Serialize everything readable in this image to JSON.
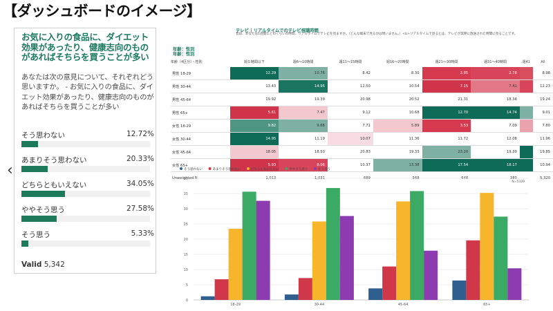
{
  "page_title": "【ダッシュボードのイメージ】",
  "survey": {
    "question": "お気に入りの食品に、ダイエット効果があったり、健康志向のものがあればそちらを買うことが多い",
    "prompt": "あなたは次の意見について、それぞれどう思いますか。 - お気に入りの食品に、ダイエット効果があったり、健康志向のものがあればそちらを買うことが多い",
    "options": [
      {
        "label": "そう思わない",
        "pct": "12.72%",
        "value": 12.72
      },
      {
        "label": "あまりそう思わない",
        "pct": "20.33%",
        "value": 20.33
      },
      {
        "label": "どちらともいえない",
        "pct": "34.05%",
        "value": 34.05
      },
      {
        "label": "ややそう思う",
        "pct": "27.58%",
        "value": 27.58
      },
      {
        "label": "そう思う",
        "pct": "5.33%",
        "value": 5.33
      }
    ],
    "valid_label": "Valid",
    "valid_value": "5,342",
    "prev_icon": "chevron-left-icon",
    "bar_color": "#1d7a5a"
  },
  "tv_table": {
    "title": "テレビ | リアルタイムでのテレビ視聴時間",
    "subtitle": "普段、あなたは1週間にどのくらいの時間、リアルタイムでテレビを見ますか。（どんな端末で見るかは問いません。）<b>リアルタイムで見るとは、テレビが実際に放送された時間に見ることです。",
    "legend_lines": [
      "年齢：性別",
      "年齢：性別"
    ],
    "header_row_label": "年齢（4区分）・性別",
    "columns": [
      "週５時間以下",
      "週6〜10時間",
      "週11〜15時間",
      "週16〜20時間",
      "週21〜30時間",
      "週31〜40時間",
      "週41",
      "All"
    ],
    "rows": [
      {
        "label": "男性 18-29",
        "values": [
          "12.29",
          "10.76",
          "8.42",
          "8.30",
          "2.85",
          "2.78",
          "",
          "8.98"
        ],
        "colors": [
          "#0e6b57",
          "#7fb0a4",
          "",
          "",
          "#d63a4f",
          "#d84459",
          "#d8505f",
          ""
        ]
      },
      {
        "label": "男性 30-44",
        "values": [
          "13.43",
          "14.95",
          "12.50",
          "10.54",
          "7.15",
          "7.41",
          "",
          "12.23"
        ],
        "colors": [
          "",
          "#1a7560",
          "",
          "",
          "#d0344a",
          "#e27886",
          "#d84459",
          ""
        ]
      },
      {
        "label": "男性 45-64",
        "values": [
          "19.92",
          "19.39",
          "20.98",
          "20.52",
          "21.31",
          "18.34",
          "",
          "19.24"
        ],
        "colors": [
          "",
          "",
          "",
          "",
          "",
          "",
          "",
          ""
        ]
      },
      {
        "label": "男性 65+",
        "values": [
          "5.61",
          "7.47",
          "9.12",
          "10.68",
          "12.70",
          "14.74",
          "",
          "9.01"
        ],
        "colors": [
          "#d0344a",
          "#f3c9cf",
          "",
          "",
          "#0e6b57",
          "#0e6b57",
          "#7fb0a4",
          ""
        ]
      },
      {
        "label": "女性 18-29",
        "values": [
          "9.82",
          "9.68",
          "7.71",
          "5.89",
          "3.53",
          "7.09",
          "",
          "7.80"
        ],
        "colors": [
          "#4f9584",
          "#7fb0a4",
          "",
          "#f3c9cf",
          "#d63a4f",
          "",
          "#eaa2ac",
          ""
        ]
      },
      {
        "label": "女性 30-44",
        "values": [
          "14.95",
          "11.19",
          "10.07",
          "11.36",
          "11.72",
          "12.08",
          "",
          "11.96"
        ],
        "colors": [
          "#0e6b57",
          "",
          "#f7dde1",
          "",
          "",
          "",
          "",
          ""
        ]
      },
      {
        "label": "女性 45-64",
        "values": [
          "18.05",
          "18.50",
          "20.83",
          "19.33",
          "23.20",
          "19.39",
          "",
          "19.85"
        ],
        "colors": [
          "#f3c9cf",
          "",
          "",
          "",
          "#7fb0a4",
          "",
          "#0e6b57",
          ""
        ]
      },
      {
        "label": "女性 65+",
        "values": [
          "5.93",
          "8.06",
          "10.37",
          "13.38",
          "17.54",
          "18.17",
          "",
          "10.94"
        ],
        "colors": [
          "#d0344a",
          "#d84459",
          "",
          "#7fb0a4",
          "#0e6b57",
          "#0e6b57",
          "#0e6b57",
          ""
        ]
      }
    ],
    "footer": {
      "label": "Unweighted N",
      "values": [
        "1,013",
        "1,031",
        "689",
        "568",
        "648",
        "380",
        "",
        "5,320"
      ]
    }
  },
  "chart_data": {
    "type": "bar",
    "categories": [
      "18-29",
      "30-44",
      "45-64",
      "65+"
    ],
    "annotation": "N=5320",
    "ylim": [
      0,
      40
    ],
    "yticks": [
      "0",
      "5",
      "10",
      "15",
      "20",
      "25",
      "30",
      "35",
      "40"
    ],
    "grid": true,
    "legend_position": "top-left",
    "series": [
      {
        "name": "そう思わない",
        "color": "#2f5f8f",
        "values": [
          1.2,
          1.8,
          3.8,
          6.4
        ]
      },
      {
        "name": "あまりそう思わない",
        "color": "#d0384a",
        "values": [
          6.8,
          7.2,
          11.0,
          19.6
        ]
      },
      {
        "name": "どちらともいえない",
        "color": "#f7b52c",
        "values": [
          23.4,
          25.8,
          32.4,
          35.2
        ]
      },
      {
        "name": "ややそう思う",
        "color": "#3aaa64",
        "values": [
          35.6,
          36.8,
          35.8,
          27.4
        ]
      },
      {
        "name": "そう思う",
        "color": "#8c3bb0",
        "values": [
          32.6,
          27.6,
          16.2,
          10.4
        ]
      }
    ]
  }
}
